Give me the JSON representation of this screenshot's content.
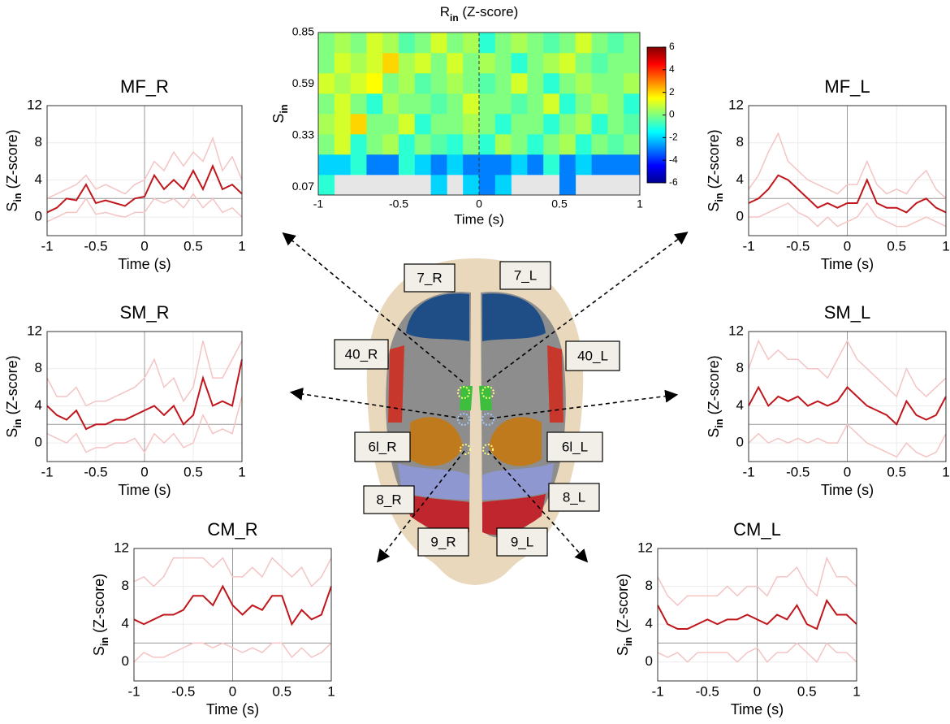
{
  "chart_data": [
    {
      "type": "line",
      "title": "MF_R",
      "xlabel": "Time (s)",
      "ylabel": [
        "S",
        "in",
        " (Z-score)"
      ],
      "x": [
        -1,
        -0.9,
        -0.8,
        -0.7,
        -0.6,
        -0.5,
        -0.4,
        -0.3,
        -0.2,
        -0.1,
        0,
        0.1,
        0.2,
        0.3,
        0.4,
        0.5,
        0.6,
        0.7,
        0.8,
        0.9,
        1
      ],
      "series": [
        {
          "color": "#f4c4c4",
          "values": [
            2,
            2.5,
            3,
            3.5,
            4.5,
            3,
            3.5,
            3,
            2.5,
            3.5,
            4,
            6,
            5,
            7,
            5.5,
            7,
            6,
            8.5,
            5,
            6.5,
            4
          ]
        },
        {
          "color": "#f4c4c4",
          "values": [
            -0.5,
            0,
            0.5,
            0.5,
            2,
            0.3,
            0.5,
            0.2,
            0,
            0.5,
            0.5,
            2,
            1.5,
            2,
            1,
            2.5,
            1,
            2,
            0.5,
            1,
            0
          ]
        },
        {
          "color": "#c0161c",
          "values": [
            0.5,
            1.0,
            2.0,
            1.8,
            3.5,
            1.5,
            1.8,
            1.5,
            1.2,
            2.0,
            2.2,
            4.5,
            3.0,
            4.0,
            3.0,
            5.0,
            3.0,
            5.5,
            3.0,
            3.5,
            2.5
          ]
        }
      ],
      "threshold": 2,
      "vline": 0,
      "xlim": [
        -1,
        1
      ],
      "ylim": [
        -2,
        12
      ],
      "xticks": [
        -1,
        -0.5,
        0,
        0.5,
        1
      ],
      "yticks": [
        0,
        4,
        8,
        12
      ],
      "grid": true
    },
    {
      "type": "line",
      "title": "SM_R",
      "xlabel": "Time (s)",
      "ylabel": [
        "S",
        "in",
        " (Z-score)"
      ],
      "x": [
        -1,
        -0.9,
        -0.8,
        -0.7,
        -0.6,
        -0.5,
        -0.4,
        -0.3,
        -0.2,
        -0.1,
        0,
        0.1,
        0.2,
        0.3,
        0.4,
        0.5,
        0.6,
        0.7,
        0.8,
        0.9,
        1
      ],
      "series": [
        {
          "color": "#f4c4c4",
          "values": [
            7,
            5,
            5,
            6,
            4,
            4.5,
            4.5,
            5,
            5.5,
            6,
            7,
            9,
            6,
            7,
            4.5,
            6,
            11,
            7,
            7,
            9,
            11
          ]
        },
        {
          "color": "#f4c4c4",
          "values": [
            1,
            0.5,
            0,
            1,
            -1,
            -0.5,
            -0.5,
            0,
            0,
            0.5,
            -1,
            1,
            0,
            1,
            -0.5,
            0,
            3,
            1,
            1.5,
            1,
            5
          ]
        },
        {
          "color": "#c0161c",
          "values": [
            4,
            3,
            2.5,
            3.5,
            1.5,
            2,
            2,
            2.5,
            2.5,
            3,
            3.5,
            4,
            3,
            4,
            2,
            3,
            7,
            4,
            4.5,
            4,
            9
          ]
        }
      ],
      "threshold": 2,
      "vline": 0,
      "xlim": [
        -1,
        1
      ],
      "ylim": [
        -2,
        12
      ],
      "xticks": [
        -1,
        -0.5,
        0,
        0.5,
        1
      ],
      "yticks": [
        0,
        4,
        8,
        12
      ],
      "grid": true
    },
    {
      "type": "line",
      "title": "CM_R",
      "xlabel": "Time (s)",
      "ylabel": [
        "S",
        "in",
        " (Z-score)"
      ],
      "x": [
        -1,
        -0.9,
        -0.8,
        -0.7,
        -0.6,
        -0.5,
        -0.4,
        -0.3,
        -0.2,
        -0.1,
        0,
        0.1,
        0.2,
        0.3,
        0.4,
        0.5,
        0.6,
        0.7,
        0.8,
        0.9,
        1
      ],
      "series": [
        {
          "color": "#f4c4c4",
          "values": [
            8.5,
            9,
            8,
            9,
            11,
            11,
            11,
            11,
            10,
            11,
            9,
            9,
            10,
            9,
            11,
            10,
            9,
            10,
            8,
            9,
            11
          ]
        },
        {
          "color": "#f4c4c4",
          "values": [
            0,
            1,
            0.5,
            0.5,
            1,
            1.5,
            2,
            2,
            1.5,
            2,
            1.5,
            1,
            1.5,
            1,
            2,
            2,
            0.5,
            1.5,
            0.5,
            1,
            2
          ]
        },
        {
          "color": "#c0161c",
          "values": [
            4.5,
            4,
            4.5,
            5,
            5,
            5.5,
            7,
            7,
            6,
            8,
            6,
            5,
            6,
            5.5,
            7,
            7,
            4,
            5.5,
            4.5,
            5,
            8
          ]
        }
      ],
      "threshold": 2,
      "vline": 0,
      "xlim": [
        -1,
        1
      ],
      "ylim": [
        -2,
        12
      ],
      "xticks": [
        -1,
        -0.5,
        0,
        0.5,
        1
      ],
      "yticks": [
        0,
        4,
        8,
        12
      ],
      "grid": true
    },
    {
      "type": "line",
      "title": "MF_L",
      "xlabel": "Time (s)",
      "ylabel": [
        "S",
        "in",
        " (Z-score)"
      ],
      "x": [
        -1,
        -0.9,
        -0.8,
        -0.7,
        -0.6,
        -0.5,
        -0.4,
        -0.3,
        -0.2,
        -0.1,
        0,
        0.1,
        0.2,
        0.3,
        0.4,
        0.5,
        0.6,
        0.7,
        0.8,
        0.9,
        1
      ],
      "series": [
        {
          "color": "#f4c4c4",
          "values": [
            3,
            4.5,
            7,
            9,
            6,
            5,
            4,
            3.5,
            3,
            2.5,
            3.5,
            3.5,
            6,
            3.5,
            2.5,
            3,
            2.5,
            4,
            5,
            3,
            2
          ]
        },
        {
          "color": "#f4c4c4",
          "values": [
            0,
            0,
            0.5,
            1,
            1.5,
            0.5,
            0,
            -1,
            0,
            -1,
            -0.5,
            0,
            1.5,
            0,
            -0.5,
            -1,
            -1,
            -0.5,
            0,
            -0.5,
            -1
          ]
        },
        {
          "color": "#c0161c",
          "values": [
            1.5,
            2,
            3,
            4.5,
            4,
            3,
            2,
            1,
            1.5,
            1,
            1.5,
            1.5,
            4,
            1.5,
            1,
            1,
            0.5,
            1.5,
            2,
            1,
            0.5
          ]
        }
      ],
      "threshold": 2,
      "vline": 0,
      "xlim": [
        -1,
        1
      ],
      "ylim": [
        -2,
        12
      ],
      "xticks": [
        -1,
        -0.5,
        0,
        0.5,
        1
      ],
      "yticks": [
        0,
        4,
        8,
        12
      ],
      "grid": true
    },
    {
      "type": "line",
      "title": "SM_L",
      "xlabel": "Time (s)",
      "ylabel": [
        "S",
        "in",
        " (Z-score)"
      ],
      "x": [
        -1,
        -0.9,
        -0.8,
        -0.7,
        -0.6,
        -0.5,
        -0.4,
        -0.3,
        -0.2,
        -0.1,
        0,
        0.1,
        0.2,
        0.3,
        0.4,
        0.5,
        0.6,
        0.7,
        0.8,
        0.9,
        1
      ],
      "series": [
        {
          "color": "#f4c4c4",
          "values": [
            8,
            11,
            9,
            10,
            9,
            9,
            8,
            8,
            7,
            9,
            11,
            9,
            8,
            7,
            6,
            5,
            8,
            6,
            5,
            6,
            7
          ]
        },
        {
          "color": "#f4c4c4",
          "values": [
            0,
            1,
            0,
            0.5,
            0,
            0.5,
            0,
            0.5,
            0,
            0,
            2,
            1,
            0,
            -0.5,
            -1,
            -1.5,
            0,
            -1,
            -1.5,
            -1,
            1
          ]
        },
        {
          "color": "#c0161c",
          "values": [
            4,
            6,
            4,
            5,
            4.5,
            5,
            4,
            4.5,
            4,
            4.5,
            6,
            5,
            4,
            3.5,
            3,
            2,
            4.5,
            3,
            2.5,
            3,
            5
          ]
        }
      ],
      "threshold": 2,
      "vline": 0,
      "xlim": [
        -1,
        1
      ],
      "ylim": [
        -2,
        12
      ],
      "xticks": [
        -1,
        -0.5,
        0,
        0.5,
        1
      ],
      "yticks": [
        0,
        4,
        8,
        12
      ],
      "grid": true
    },
    {
      "type": "line",
      "title": "CM_L",
      "xlabel": "Time (s)",
      "ylabel": [
        "S",
        "in",
        " (Z-score)"
      ],
      "x": [
        -1,
        -0.9,
        -0.8,
        -0.7,
        -0.6,
        -0.5,
        -0.4,
        -0.3,
        -0.2,
        -0.1,
        0,
        0.1,
        0.2,
        0.3,
        0.4,
        0.5,
        0.6,
        0.7,
        0.8,
        0.9,
        1
      ],
      "series": [
        {
          "color": "#f4c4c4",
          "values": [
            9,
            7,
            6,
            7,
            7,
            7,
            7,
            8,
            7,
            8,
            8,
            7,
            9,
            9,
            10,
            8,
            7,
            11,
            9,
            9,
            8
          ]
        },
        {
          "color": "#f4c4c4",
          "values": [
            1,
            0.5,
            1,
            0,
            1,
            1,
            1,
            1,
            0,
            1,
            1.5,
            0,
            1,
            1,
            2,
            1,
            0,
            2,
            1,
            1,
            0
          ]
        },
        {
          "color": "#c0161c",
          "values": [
            6,
            4,
            3.5,
            3.5,
            4,
            4.5,
            4,
            4.5,
            4.5,
            5,
            4.5,
            4,
            5,
            4.5,
            6,
            4,
            3.5,
            6.5,
            5,
            5,
            4
          ]
        }
      ],
      "threshold": 2,
      "vline": 0,
      "xlim": [
        -1,
        1
      ],
      "ylim": [
        -2,
        12
      ],
      "xticks": [
        -1,
        -0.5,
        0,
        0.5,
        1
      ],
      "yticks": [
        0,
        4,
        8,
        12
      ],
      "grid": true
    },
    {
      "type": "heatmap",
      "title": [
        "R",
        "in",
        " (Z-score)"
      ],
      "xlabel": "Time (s)",
      "ylabel": [
        "S",
        "in"
      ],
      "xlim": [
        -1,
        1
      ],
      "ylim": [
        0.03,
        0.85
      ],
      "xticks": [
        -1,
        -0.5,
        0,
        0.5,
        1
      ],
      "yticks": [
        0.07,
        0.33,
        0.59,
        0.85
      ],
      "vline": 0,
      "colormap": "jet",
      "zlim": [
        -6,
        6
      ],
      "zticks": [
        6,
        4,
        2,
        0,
        -2,
        -4,
        -6
      ],
      "z": [
        [
          -1,
          null,
          null,
          null,
          null,
          null,
          null,
          -2,
          null,
          -2,
          -3,
          -2,
          null,
          null,
          null,
          -3,
          null,
          null,
          null,
          null
        ],
        [
          -2,
          -2,
          -1,
          -3,
          -3,
          -1,
          -2,
          -3,
          -2,
          -3,
          -3,
          -3,
          -2,
          -3,
          -1,
          -3,
          -2,
          -3,
          -3,
          -3
        ],
        [
          0,
          1,
          -1,
          0,
          0.5,
          -1,
          0,
          -0.5,
          -1,
          0,
          -1,
          0.5,
          0,
          -1,
          0,
          0.5,
          -1,
          0,
          -0.5,
          0
        ],
        [
          0.5,
          1,
          2,
          0,
          0,
          1,
          -1,
          0,
          0,
          0.5,
          0,
          -1,
          0,
          0,
          -1,
          0,
          0.5,
          -1,
          0,
          -0.5
        ],
        [
          0,
          1,
          0,
          -1,
          0.5,
          0,
          0,
          -0.5,
          0,
          1,
          0,
          0,
          -0.5,
          0,
          1,
          -1,
          0,
          0.5,
          0,
          -1
        ],
        [
          1,
          0.5,
          1,
          1.5,
          0,
          0.5,
          -0.5,
          0,
          0.5,
          0,
          -0.5,
          0,
          1,
          0,
          -1,
          0,
          0.5,
          0,
          0,
          0.5
        ],
        [
          0,
          1,
          0.5,
          1,
          2,
          0.5,
          1,
          0,
          1,
          0,
          0.5,
          0,
          -1,
          0,
          0.5,
          1,
          0,
          -0.5,
          0,
          0
        ],
        [
          0,
          0.5,
          0,
          1,
          0.5,
          -0.5,
          0,
          1,
          0,
          0.5,
          -1,
          0,
          0.5,
          0,
          -0.5,
          0,
          1,
          0,
          -0.5,
          0
        ]
      ]
    }
  ],
  "diagram": {
    "labels": [
      "7_R",
      "7_L",
      "40_R",
      "40_L",
      "6l_R",
      "6l_L",
      "8_R",
      "8_L",
      "9_R",
      "9_L"
    ]
  }
}
